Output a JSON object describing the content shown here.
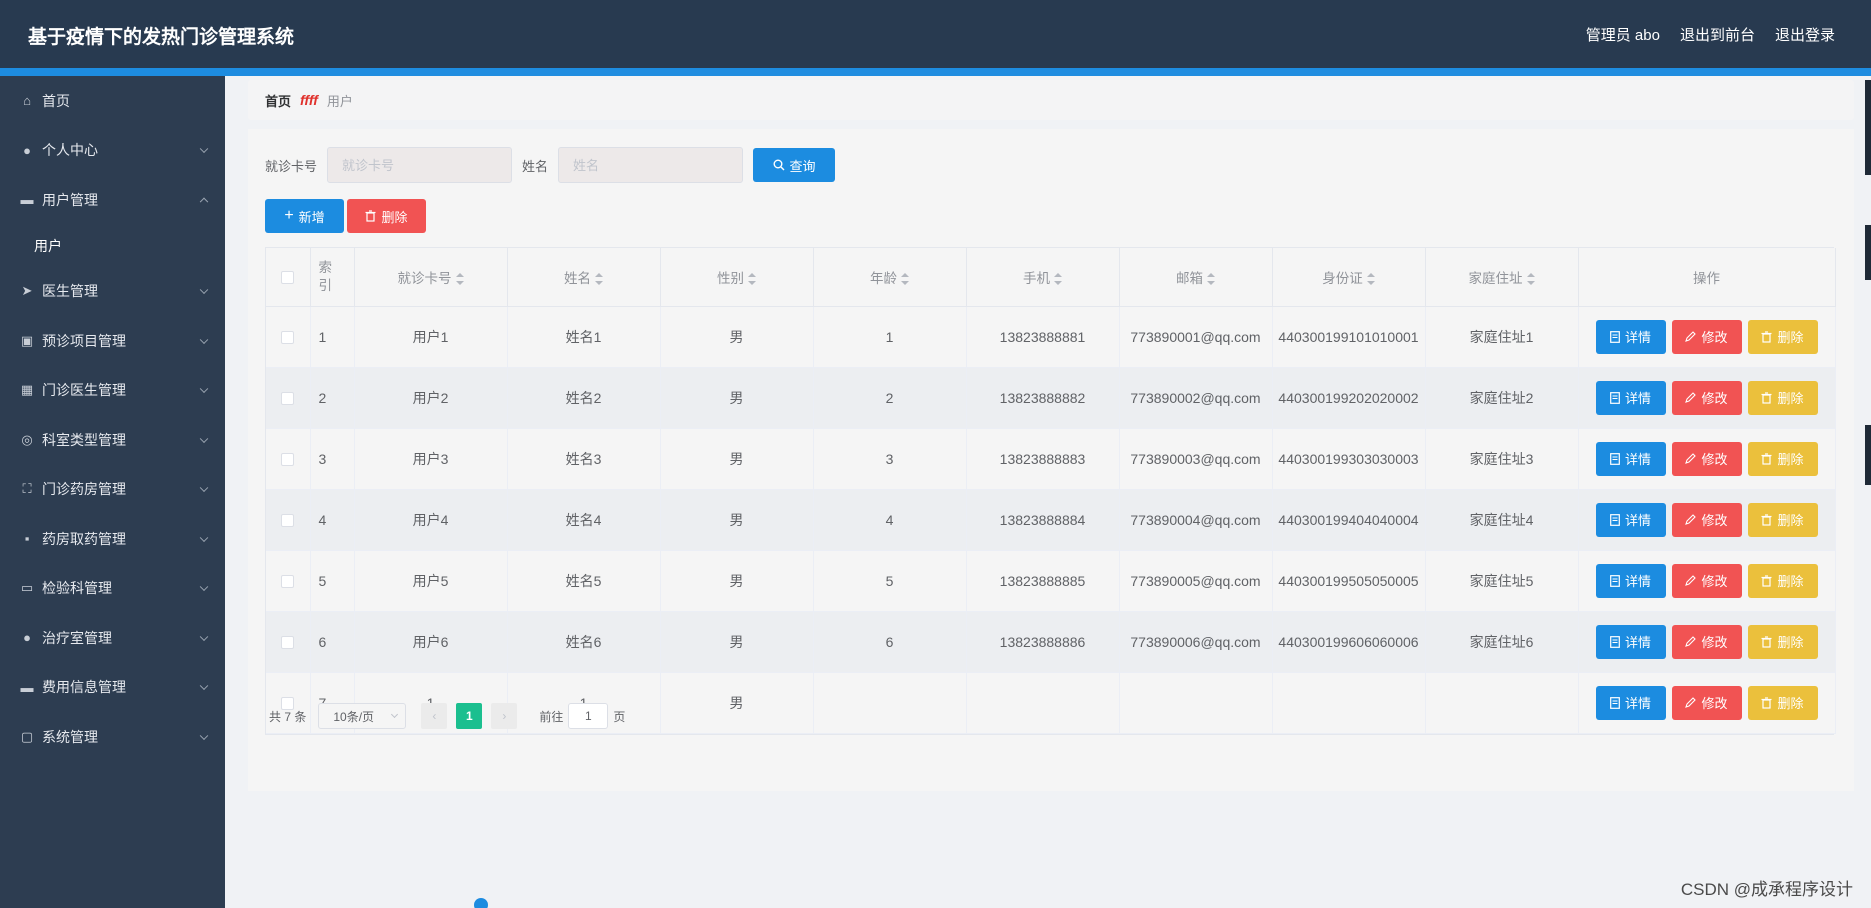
{
  "header": {
    "title": "基于疫情下的发热门诊管理系统",
    "user": "管理员 abo",
    "to_front": "退出到前台",
    "logout": "退出登录"
  },
  "sidebar": {
    "items": [
      {
        "label": "首页",
        "icon": "home-icon",
        "glyph": "⌂",
        "arrow": ""
      },
      {
        "label": "个人中心",
        "icon": "user-icon",
        "glyph": "●",
        "arrow": "down"
      },
      {
        "label": "用户管理",
        "icon": "chat-icon",
        "glyph": "▬",
        "arrow": "up"
      },
      {
        "label": "医生管理",
        "icon": "send-icon",
        "glyph": "➤",
        "arrow": "down"
      },
      {
        "label": "预诊项目管理",
        "icon": "clipboard-icon",
        "glyph": "▣",
        "arrow": "down"
      },
      {
        "label": "门诊医生管理",
        "icon": "grid-icon",
        "glyph": "▦",
        "arrow": "down"
      },
      {
        "label": "科室类型管理",
        "icon": "target-icon",
        "glyph": "◎",
        "arrow": "down"
      },
      {
        "label": "门诊药房管理",
        "icon": "fullscreen-icon",
        "glyph": "⛶",
        "arrow": "down"
      },
      {
        "label": "药房取药管理",
        "icon": "apps-icon",
        "glyph": "▪",
        "arrow": "down"
      },
      {
        "label": "检验科管理",
        "icon": "monitor-icon",
        "glyph": "▭",
        "arrow": "down"
      },
      {
        "label": "治疗室管理",
        "icon": "user-icon",
        "glyph": "●",
        "arrow": "down"
      },
      {
        "label": "费用信息管理",
        "icon": "desktop-icon",
        "glyph": "▬",
        "arrow": "down"
      },
      {
        "label": "系统管理",
        "icon": "message-icon",
        "glyph": "▢",
        "arrow": "down"
      }
    ],
    "sub_item": "用户"
  },
  "breadcrumb": {
    "home": "首页",
    "sep": "ffff",
    "current": "用户"
  },
  "search": {
    "card_label": "就诊卡号",
    "card_placeholder": "就诊卡号",
    "name_label": "姓名",
    "name_placeholder": "姓名",
    "button": "查询"
  },
  "actions": {
    "add": "新增",
    "delete": "删除"
  },
  "table": {
    "columns": [
      "索引",
      "就诊卡号",
      "姓名",
      "性别",
      "年龄",
      "手机",
      "邮箱",
      "身份证",
      "家庭住址",
      "操作"
    ],
    "index_header_line1": "索",
    "index_header_line2": "引",
    "rows": [
      {
        "idx": "1",
        "card": "用户1",
        "name": "姓名1",
        "gender": "男",
        "age": "1",
        "phone": "13823888881",
        "email": "773890001@qq.com",
        "id_card": "440300199101010001",
        "address": "家庭住址1"
      },
      {
        "idx": "2",
        "card": "用户2",
        "name": "姓名2",
        "gender": "男",
        "age": "2",
        "phone": "13823888882",
        "email": "773890002@qq.com",
        "id_card": "440300199202020002",
        "address": "家庭住址2"
      },
      {
        "idx": "3",
        "card": "用户3",
        "name": "姓名3",
        "gender": "男",
        "age": "3",
        "phone": "13823888883",
        "email": "773890003@qq.com",
        "id_card": "440300199303030003",
        "address": "家庭住址3"
      },
      {
        "idx": "4",
        "card": "用户4",
        "name": "姓名4",
        "gender": "男",
        "age": "4",
        "phone": "13823888884",
        "email": "773890004@qq.com",
        "id_card": "440300199404040004",
        "address": "家庭住址4"
      },
      {
        "idx": "5",
        "card": "用户5",
        "name": "姓名5",
        "gender": "男",
        "age": "5",
        "phone": "13823888885",
        "email": "773890005@qq.com",
        "id_card": "440300199505050005",
        "address": "家庭住址5"
      },
      {
        "idx": "6",
        "card": "用户6",
        "name": "姓名6",
        "gender": "男",
        "age": "6",
        "phone": "13823888886",
        "email": "773890006@qq.com",
        "id_card": "440300199606060006",
        "address": "家庭住址6"
      },
      {
        "idx": "7",
        "card": "1",
        "name": "1",
        "gender": "男",
        "age": "",
        "phone": "",
        "email": "",
        "id_card": "",
        "address": ""
      }
    ],
    "op_detail": "详情",
    "op_edit": "修改",
    "op_delete": "删除"
  },
  "pagination": {
    "total": "共 7 条",
    "page_size": "10条/页",
    "current_page": "1",
    "goto_label": "前往",
    "goto_value": "1",
    "page_unit": "页"
  },
  "watermark": "CSDN @成承程序设计",
  "colors": {
    "header_bg": "#283a50",
    "sidebar_bg": "#2d3d51",
    "primary": "#1c8ce0",
    "danger": "#f15353",
    "warning": "#ebc03c",
    "pager_active": "#1bbf8f"
  }
}
